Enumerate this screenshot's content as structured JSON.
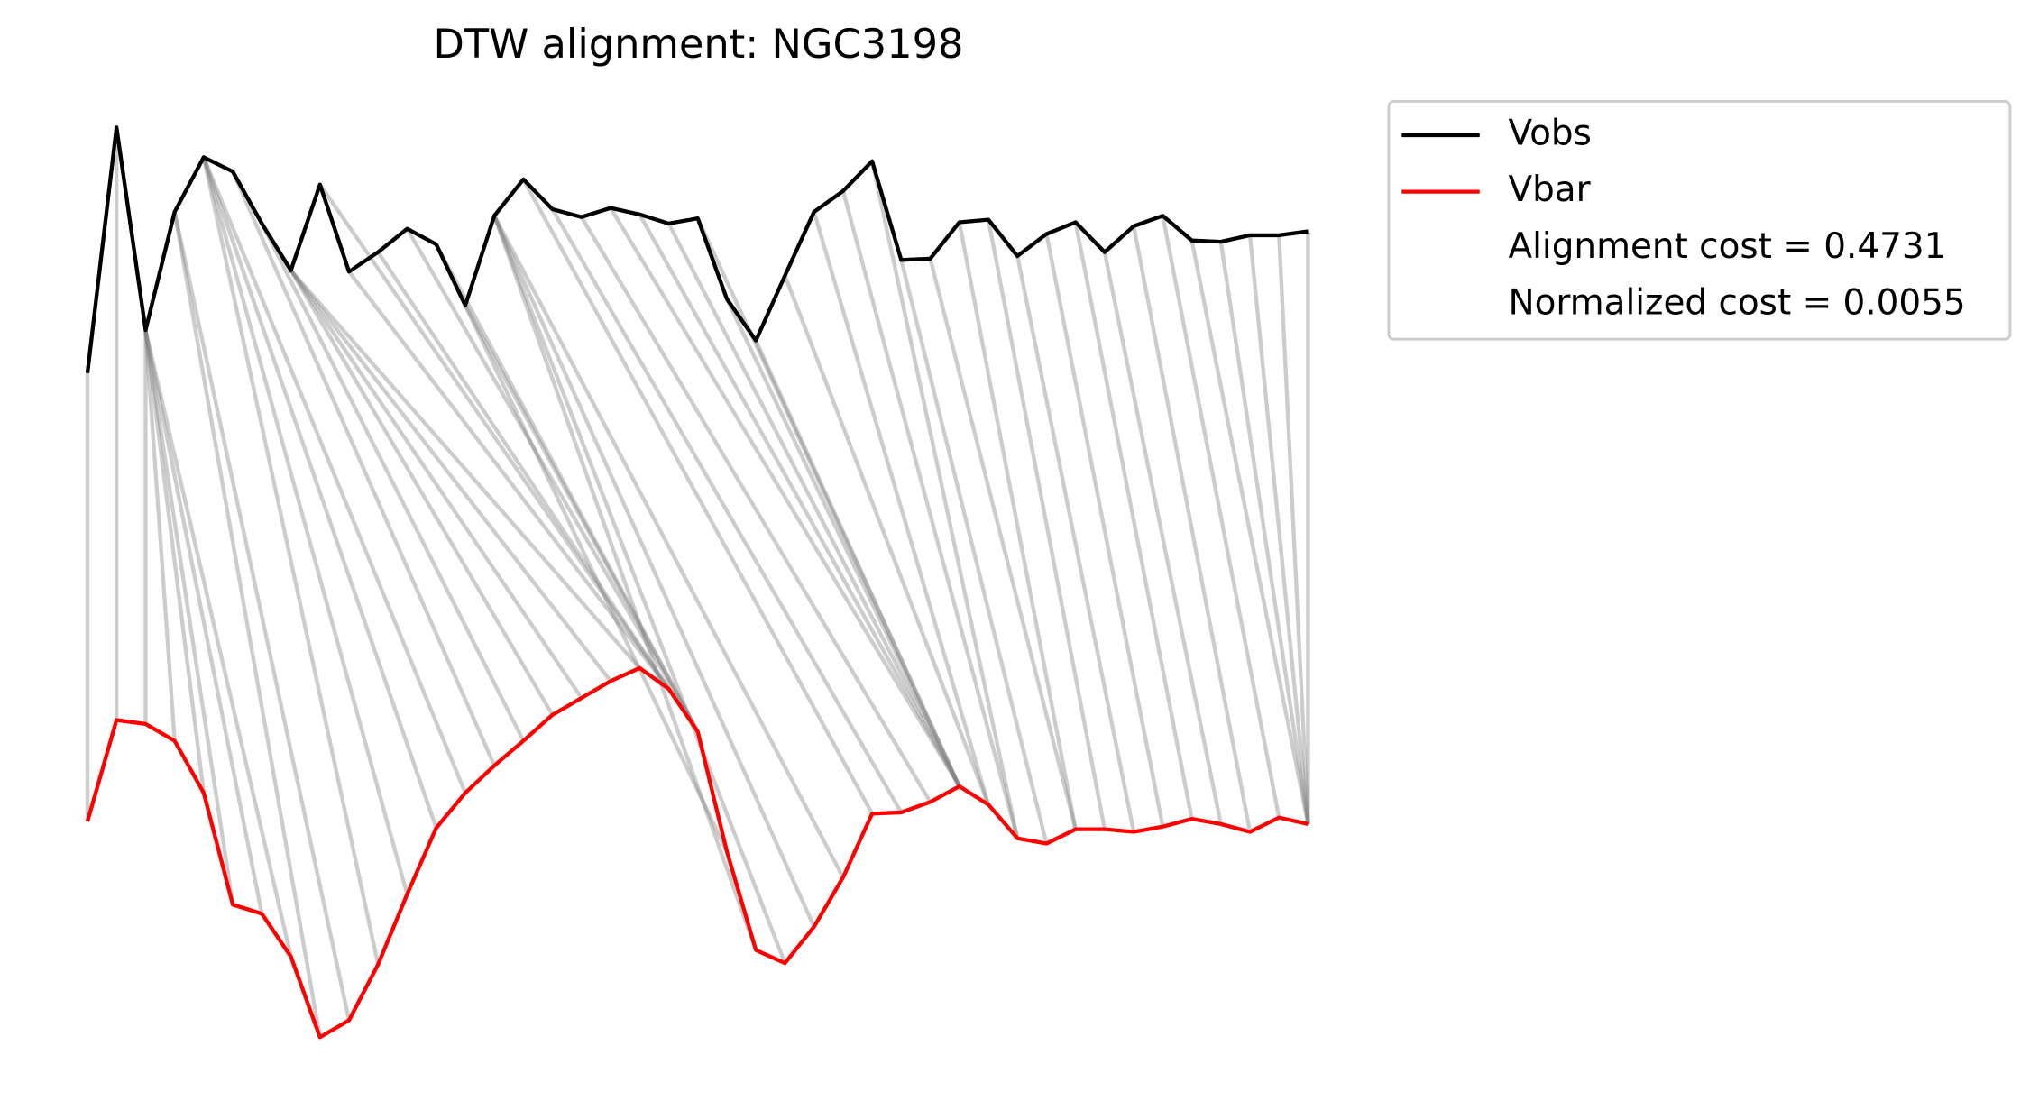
{
  "chart_data": {
    "type": "dtw",
    "title": "DTW alignment: NGC3198",
    "ylim": [
      40,
      770
    ],
    "series": [
      {
        "name": "Vobs",
        "color": "#000000",
        "values": [
          563,
          752,
          596,
          687,
          729,
          718,
          678,
          642,
          708,
          641,
          656,
          674,
          662,
          615,
          684,
          712,
          689,
          683,
          690,
          685,
          678,
          682,
          620,
          588,
          638,
          687,
          703,
          726,
          650,
          651,
          679,
          681,
          653,
          670,
          679,
          656,
          676,
          684,
          665,
          664,
          669,
          669,
          672
        ]
      },
      {
        "name": "Vbar",
        "color": "#ff0000",
        "values": [
          218,
          296,
          293,
          280,
          240,
          154,
          147,
          114,
          52,
          65,
          108,
          162,
          213,
          240,
          261,
          280,
          300,
          313,
          326,
          336,
          320,
          287,
          195,
          119,
          109,
          137,
          175,
          224,
          225,
          233,
          245,
          231,
          205,
          201,
          212,
          212,
          210,
          214,
          220,
          216,
          210,
          221,
          216
        ]
      }
    ],
    "path": [
      [
        0,
        0
      ],
      [
        1,
        1
      ],
      [
        2,
        2
      ],
      [
        2,
        3
      ],
      [
        2,
        4
      ],
      [
        2,
        5
      ],
      [
        2,
        6
      ],
      [
        2,
        7
      ],
      [
        3,
        8
      ],
      [
        3,
        9
      ],
      [
        4,
        10
      ],
      [
        4,
        11
      ],
      [
        4,
        12
      ],
      [
        4,
        13
      ],
      [
        5,
        14
      ],
      [
        6,
        15
      ],
      [
        7,
        16
      ],
      [
        7,
        17
      ],
      [
        7,
        18
      ],
      [
        7,
        19
      ],
      [
        8,
        20
      ],
      [
        9,
        20
      ],
      [
        10,
        20
      ],
      [
        11,
        21
      ],
      [
        12,
        21
      ],
      [
        13,
        21
      ],
      [
        13,
        22
      ],
      [
        14,
        23
      ],
      [
        14,
        24
      ],
      [
        14,
        25
      ],
      [
        14,
        26
      ],
      [
        15,
        27
      ],
      [
        16,
        28
      ],
      [
        17,
        29
      ],
      [
        18,
        30
      ],
      [
        19,
        30
      ],
      [
        20,
        30
      ],
      [
        21,
        30
      ],
      [
        22,
        30
      ],
      [
        23,
        30
      ],
      [
        24,
        31
      ],
      [
        25,
        31
      ],
      [
        26,
        32
      ],
      [
        27,
        32
      ],
      [
        28,
        33
      ],
      [
        29,
        34
      ],
      [
        30,
        34
      ],
      [
        31,
        35
      ],
      [
        32,
        36
      ],
      [
        33,
        37
      ],
      [
        34,
        38
      ],
      [
        35,
        39
      ],
      [
        36,
        40
      ],
      [
        37,
        41
      ],
      [
        38,
        42
      ],
      [
        39,
        42
      ],
      [
        40,
        42
      ],
      [
        41,
        42
      ],
      [
        42,
        42
      ]
    ],
    "annotations": [
      "Alignment cost = 0.4731",
      "Normalized cost = 0.0055"
    ]
  }
}
